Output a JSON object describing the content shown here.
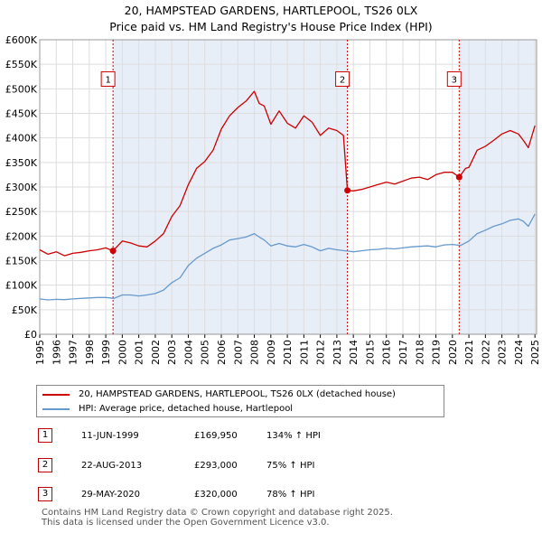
{
  "chart_data": {
    "type": "line",
    "title": "20, HAMPSTEAD GARDENS, HARTLEPOOL, TS26 0LX",
    "subtitle": "Price paid vs. HM Land Registry's House Price Index (HPI)",
    "xlabel": "",
    "ylabel": "",
    "xlim": [
      1995,
      2025.1
    ],
    "ylim": [
      0,
      600000
    ],
    "x_ticks": [
      1995,
      1996,
      1997,
      1998,
      1999,
      2000,
      2001,
      2002,
      2003,
      2004,
      2005,
      2006,
      2007,
      2008,
      2009,
      2010,
      2011,
      2012,
      2013,
      2014,
      2015,
      2016,
      2017,
      2018,
      2019,
      2020,
      2021,
      2022,
      2023,
      2024,
      2025
    ],
    "x_tick_labels": [
      "1995",
      "1996",
      "1997",
      "1998",
      "1999",
      "2000",
      "2001",
      "2002",
      "2003",
      "2004",
      "2005",
      "2006",
      "2007",
      "2008",
      "2009",
      "2010",
      "2011",
      "2012",
      "2013",
      "2014",
      "2015",
      "2016",
      "2017",
      "2018",
      "2019",
      "2020",
      "2021",
      "2022",
      "2023",
      "2024",
      "2025"
    ],
    "y_ticks": [
      0,
      50000,
      100000,
      150000,
      200000,
      250000,
      300000,
      350000,
      400000,
      450000,
      500000,
      550000,
      600000
    ],
    "y_tick_labels": [
      "£0",
      "£50K",
      "£100K",
      "£150K",
      "£200K",
      "£250K",
      "£300K",
      "£350K",
      "£400K",
      "£450K",
      "£500K",
      "£550K",
      "£600K"
    ],
    "colors": {
      "property": "#cc0000",
      "hpi": "#6699cc",
      "shade": "#e8eef8",
      "vline": "#cc0000",
      "grid": "#dddddd"
    },
    "shaded_ranges": [
      [
        1999.44,
        2013.64
      ],
      [
        2020.41,
        2025.1
      ]
    ],
    "series": [
      {
        "name": "20, HAMPSTEAD GARDENS, HARTLEPOOL, TS26 0LX (detached house)",
        "color": "#cc0000",
        "x": [
          1995.0,
          1995.5,
          1996.0,
          1996.5,
          1997.0,
          1997.5,
          1998.0,
          1998.5,
          1999.0,
          1999.44,
          2000.0,
          2000.5,
          2001.0,
          2001.5,
          2002.0,
          2002.5,
          2003.0,
          2003.5,
          2004.0,
          2004.5,
          2005.0,
          2005.5,
          2006.0,
          2006.5,
          2007.0,
          2007.5,
          2008.0,
          2008.3,
          2008.6,
          2009.0,
          2009.5,
          2010.0,
          2010.5,
          2011.0,
          2011.5,
          2012.0,
          2012.5,
          2013.0,
          2013.4,
          2013.64,
          2014.0,
          2014.5,
          2015.0,
          2015.5,
          2016.0,
          2016.5,
          2017.0,
          2017.5,
          2018.0,
          2018.5,
          2019.0,
          2019.5,
          2020.0,
          2020.41,
          2020.8,
          2021.0,
          2021.5,
          2022.0,
          2022.5,
          2023.0,
          2023.5,
          2024.0,
          2024.3,
          2024.6,
          2025.0
        ],
        "y": [
          172000,
          163000,
          168000,
          160000,
          165000,
          167000,
          170000,
          172000,
          176000,
          169950,
          190000,
          186000,
          180000,
          178000,
          190000,
          205000,
          240000,
          262000,
          305000,
          338000,
          352000,
          375000,
          418000,
          445000,
          462000,
          475000,
          495000,
          470000,
          465000,
          428000,
          455000,
          430000,
          420000,
          445000,
          432000,
          405000,
          420000,
          415000,
          405000,
          293000,
          292000,
          295000,
          300000,
          305000,
          310000,
          306000,
          312000,
          318000,
          320000,
          315000,
          325000,
          330000,
          330000,
          320000,
          338000,
          340000,
          375000,
          383000,
          395000,
          408000,
          415000,
          408000,
          395000,
          380000,
          425000
        ]
      },
      {
        "name": "HPI: Average price, detached house, Hartlepool",
        "color": "#6699cc",
        "x": [
          1995.0,
          1995.5,
          1996.0,
          1996.5,
          1997.0,
          1997.5,
          1998.0,
          1998.5,
          1999.0,
          1999.5,
          2000.0,
          2000.5,
          2001.0,
          2001.5,
          2002.0,
          2002.5,
          2003.0,
          2003.5,
          2004.0,
          2004.5,
          2005.0,
          2005.5,
          2006.0,
          2006.5,
          2007.0,
          2007.5,
          2008.0,
          2008.3,
          2008.6,
          2009.0,
          2009.5,
          2010.0,
          2010.5,
          2011.0,
          2011.5,
          2012.0,
          2012.5,
          2013.0,
          2013.5,
          2014.0,
          2014.5,
          2015.0,
          2015.5,
          2016.0,
          2016.5,
          2017.0,
          2017.5,
          2018.0,
          2018.5,
          2019.0,
          2019.5,
          2020.0,
          2020.5,
          2021.0,
          2021.5,
          2022.0,
          2022.5,
          2023.0,
          2023.5,
          2024.0,
          2024.3,
          2024.6,
          2025.0
        ],
        "y": [
          72000,
          70000,
          71000,
          70500,
          72000,
          73000,
          74000,
          75000,
          75000,
          73000,
          80000,
          80000,
          78000,
          80000,
          83000,
          90000,
          105000,
          115000,
          140000,
          155000,
          165000,
          175000,
          182000,
          192000,
          195000,
          198000,
          205000,
          198000,
          192000,
          180000,
          185000,
          180000,
          178000,
          183000,
          178000,
          170000,
          175000,
          172000,
          170000,
          168000,
          170000,
          172000,
          173000,
          175000,
          174000,
          176000,
          178000,
          179000,
          180000,
          178000,
          182000,
          183000,
          181000,
          190000,
          205000,
          212000,
          220000,
          225000,
          232000,
          235000,
          230000,
          220000,
          245000
        ]
      }
    ],
    "sales": [
      {
        "label": "1",
        "x": 1999.44,
        "y": 169950
      },
      {
        "label": "2",
        "x": 2013.64,
        "y": 293000
      },
      {
        "label": "3",
        "x": 2020.41,
        "y": 320000
      }
    ],
    "marker_box_y": 520000
  },
  "header": {
    "title": "20, HAMPSTEAD GARDENS, HARTLEPOOL, TS26 0LX",
    "subtitle": "Price paid vs. HM Land Registry's House Price Index (HPI)"
  },
  "legend": {
    "property": "20, HAMPSTEAD GARDENS, HARTLEPOOL, TS26 0LX (detached house)",
    "hpi": "HPI: Average price, detached house, Hartlepool"
  },
  "table": [
    {
      "num": "1",
      "date": "11-JUN-1999",
      "price": "£169,950",
      "hpi": "134% ↑ HPI"
    },
    {
      "num": "2",
      "date": "22-AUG-2013",
      "price": "£293,000",
      "hpi": "75% ↑ HPI"
    },
    {
      "num": "3",
      "date": "29-MAY-2020",
      "price": "£320,000",
      "hpi": "78% ↑ HPI"
    }
  ],
  "footer": {
    "line1": "Contains HM Land Registry data © Crown copyright and database right 2025.",
    "line2": "This data is licensed under the Open Government Licence v3.0."
  }
}
